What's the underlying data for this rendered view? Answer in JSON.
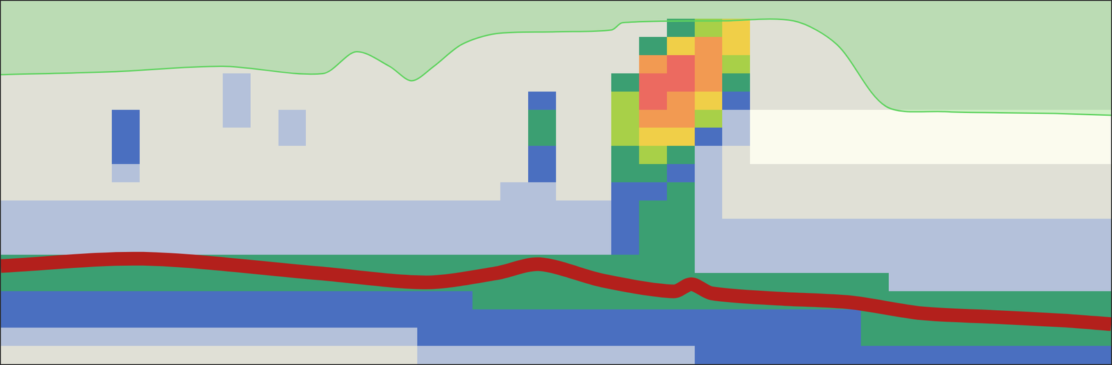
{
  "chart_data": {
    "type": "echogram",
    "tick_labels": false,
    "xlim": [
      0,
      100
    ],
    "ylim": [
      0,
      100
    ],
    "colors": [
      "#fbfbee",
      "#e0e0d6",
      "#b4c1da",
      "#4a6fc0",
      "#3b9f72",
      "#a8d048",
      "#f0cf48",
      "#f29a52",
      "#ec6a60"
    ],
    "cells": [
      [
        1,
        1,
        1,
        1,
        1,
        1,
        1,
        1,
        1,
        1,
        1,
        1,
        1,
        1,
        1,
        1,
        1,
        1,
        1,
        1,
        1,
        1,
        1,
        1,
        1,
        1,
        1,
        1,
        1,
        1,
        1,
        1,
        1,
        1,
        1,
        1,
        1,
        1,
        1,
        1
      ],
      [
        1,
        1,
        1,
        1,
        1,
        1,
        1,
        1,
        1,
        1,
        1,
        1,
        1,
        1,
        1,
        1,
        1,
        1,
        1,
        1,
        1,
        1,
        1,
        1,
        4,
        5,
        6,
        1,
        1,
        1,
        1,
        1,
        1,
        1,
        1,
        1,
        1,
        1,
        1,
        1
      ],
      [
        1,
        1,
        1,
        1,
        1,
        1,
        1,
        1,
        1,
        1,
        1,
        1,
        1,
        1,
        1,
        1,
        1,
        1,
        1,
        1,
        1,
        1,
        1,
        4,
        6,
        7,
        6,
        1,
        1,
        1,
        1,
        1,
        1,
        1,
        1,
        1,
        1,
        1,
        1,
        1
      ],
      [
        1,
        1,
        1,
        1,
        1,
        1,
        1,
        1,
        1,
        1,
        1,
        1,
        1,
        1,
        1,
        1,
        1,
        1,
        1,
        1,
        1,
        1,
        1,
        7,
        8,
        7,
        5,
        1,
        1,
        1,
        1,
        1,
        1,
        1,
        1,
        1,
        1,
        1,
        1,
        1
      ],
      [
        1,
        1,
        1,
        1,
        1,
        1,
        1,
        1,
        2,
        1,
        1,
        1,
        1,
        1,
        1,
        1,
        1,
        1,
        1,
        1,
        1,
        1,
        4,
        8,
        8,
        7,
        4,
        1,
        1,
        1,
        1,
        1,
        1,
        1,
        1,
        1,
        1,
        1,
        1,
        1
      ],
      [
        1,
        1,
        1,
        1,
        1,
        1,
        1,
        1,
        2,
        1,
        1,
        1,
        1,
        1,
        1,
        1,
        1,
        1,
        1,
        3,
        1,
        1,
        5,
        8,
        7,
        6,
        3,
        1,
        1,
        1,
        1,
        1,
        1,
        1,
        1,
        1,
        1,
        1,
        1,
        1
      ],
      [
        1,
        1,
        1,
        1,
        3,
        1,
        1,
        1,
        2,
        1,
        2,
        1,
        1,
        1,
        1,
        1,
        1,
        1,
        1,
        4,
        1,
        1,
        5,
        7,
        7,
        5,
        2,
        0,
        0,
        0,
        0,
        0,
        0,
        0,
        0,
        0,
        0,
        0,
        0,
        0
      ],
      [
        1,
        1,
        1,
        1,
        3,
        1,
        1,
        1,
        1,
        1,
        2,
        1,
        1,
        1,
        1,
        1,
        1,
        1,
        1,
        4,
        1,
        1,
        5,
        6,
        6,
        3,
        2,
        0,
        0,
        0,
        0,
        0,
        0,
        0,
        0,
        0,
        0,
        0,
        0,
        0
      ],
      [
        1,
        1,
        1,
        1,
        3,
        1,
        1,
        1,
        1,
        1,
        1,
        1,
        1,
        1,
        1,
        1,
        1,
        1,
        1,
        3,
        1,
        1,
        4,
        5,
        4,
        2,
        1,
        0,
        0,
        0,
        0,
        0,
        0,
        0,
        0,
        0,
        0,
        0,
        0,
        0
      ],
      [
        1,
        1,
        1,
        1,
        2,
        1,
        1,
        1,
        1,
        1,
        1,
        1,
        1,
        1,
        1,
        1,
        1,
        1,
        1,
        3,
        1,
        1,
        4,
        4,
        3,
        2,
        1,
        1,
        1,
        1,
        1,
        1,
        1,
        1,
        1,
        1,
        1,
        1,
        1,
        1
      ],
      [
        1,
        1,
        1,
        1,
        1,
        1,
        1,
        1,
        1,
        1,
        1,
        1,
        1,
        1,
        1,
        1,
        1,
        1,
        2,
        2,
        1,
        1,
        3,
        3,
        4,
        2,
        1,
        1,
        1,
        1,
        1,
        1,
        1,
        1,
        1,
        1,
        1,
        1,
        1,
        1
      ],
      [
        2,
        2,
        2,
        2,
        2,
        2,
        2,
        2,
        2,
        2,
        2,
        2,
        2,
        2,
        2,
        2,
        2,
        2,
        2,
        2,
        2,
        2,
        3,
        4,
        4,
        2,
        1,
        1,
        1,
        1,
        1,
        1,
        1,
        1,
        1,
        1,
        1,
        1,
        1,
        1
      ],
      [
        2,
        2,
        2,
        2,
        2,
        2,
        2,
        2,
        2,
        2,
        2,
        2,
        2,
        2,
        2,
        2,
        2,
        2,
        2,
        2,
        2,
        2,
        3,
        4,
        4,
        2,
        2,
        2,
        2,
        2,
        2,
        2,
        2,
        2,
        2,
        2,
        2,
        2,
        2,
        2
      ],
      [
        2,
        2,
        2,
        2,
        2,
        2,
        2,
        2,
        2,
        2,
        2,
        2,
        2,
        2,
        2,
        2,
        2,
        2,
        2,
        2,
        2,
        2,
        3,
        4,
        4,
        2,
        2,
        2,
        2,
        2,
        2,
        2,
        2,
        2,
        2,
        2,
        2,
        2,
        2,
        2
      ],
      [
        4,
        4,
        4,
        4,
        4,
        4,
        4,
        4,
        4,
        4,
        4,
        4,
        4,
        4,
        4,
        4,
        4,
        4,
        4,
        4,
        4,
        4,
        4,
        4,
        4,
        2,
        2,
        2,
        2,
        2,
        2,
        2,
        2,
        2,
        2,
        2,
        2,
        2,
        2,
        2
      ],
      [
        4,
        4,
        4,
        4,
        4,
        4,
        4,
        4,
        4,
        4,
        4,
        4,
        4,
        4,
        4,
        4,
        4,
        4,
        4,
        4,
        4,
        4,
        4,
        4,
        4,
        4,
        4,
        4,
        4,
        4,
        4,
        4,
        2,
        2,
        2,
        2,
        2,
        2,
        2,
        2
      ],
      [
        3,
        3,
        3,
        3,
        3,
        3,
        3,
        3,
        3,
        3,
        3,
        3,
        3,
        3,
        3,
        3,
        3,
        4,
        4,
        4,
        4,
        4,
        4,
        4,
        4,
        4,
        4,
        4,
        4,
        4,
        4,
        4,
        4,
        4,
        4,
        4,
        4,
        4,
        4,
        4
      ],
      [
        3,
        3,
        3,
        3,
        3,
        3,
        3,
        3,
        3,
        3,
        3,
        3,
        3,
        3,
        3,
        3,
        3,
        3,
        3,
        3,
        3,
        3,
        3,
        3,
        3,
        3,
        3,
        3,
        3,
        3,
        3,
        4,
        4,
        4,
        4,
        4,
        4,
        4,
        4,
        4
      ],
      [
        2,
        2,
        2,
        2,
        2,
        2,
        2,
        2,
        2,
        2,
        2,
        2,
        2,
        2,
        2,
        3,
        3,
        3,
        3,
        3,
        3,
        3,
        3,
        3,
        3,
        3,
        3,
        3,
        3,
        3,
        3,
        4,
        4,
        4,
        4,
        4,
        4,
        4,
        4,
        4
      ],
      [
        1,
        1,
        1,
        1,
        1,
        1,
        1,
        1,
        1,
        1,
        1,
        1,
        1,
        1,
        1,
        2,
        2,
        2,
        2,
        2,
        2,
        2,
        2,
        2,
        2,
        3,
        3,
        3,
        3,
        3,
        3,
        3,
        3,
        3,
        3,
        3,
        3,
        3,
        3,
        3
      ]
    ],
    "series": [
      {
        "type": "area",
        "color": "#5fd35f",
        "x": [
          0,
          10,
          20,
          29,
          32,
          35,
          37,
          39,
          41.5,
          44.6,
          50,
          55,
          56,
          65,
          71.4,
          75.3,
          79.7,
          85,
          90,
          95,
          100
        ],
        "values": [
          20.3,
          19.5,
          18,
          20,
          14,
          18,
          22,
          18,
          12,
          9,
          8.5,
          8,
          6,
          5.5,
          5.5,
          12,
          29,
          30.5,
          30.8,
          31,
          31.5
        ]
      },
      {
        "type": "line",
        "color": "#b3201c",
        "x": [
          0,
          12.8,
          28.7,
          38.3,
          44.6,
          48.5,
          54.2,
          60.6,
          62.2,
          64,
          70.2,
          76.5,
          82.9,
          89.3,
          95.7,
          100
        ],
        "values": [
          73,
          71,
          75,
          77.5,
          75,
          72.5,
          77,
          80,
          78,
          80.5,
          82,
          83,
          86,
          87,
          88,
          89
        ]
      }
    ]
  }
}
